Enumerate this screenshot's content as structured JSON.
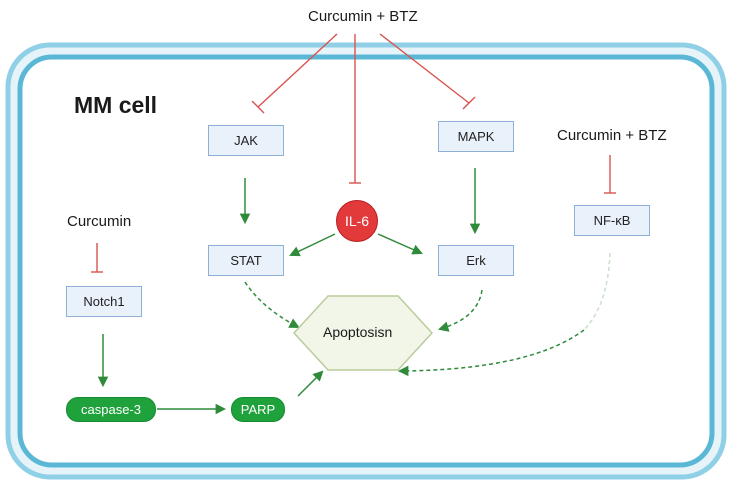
{
  "diagram": {
    "cell_label": "MM cell",
    "treatments": {
      "top": "Curcumin + BTZ",
      "right": "Curcumin + BTZ",
      "left": "Curcumin"
    },
    "nodes": {
      "jak": "JAK",
      "mapk": "MAPK",
      "il6": "IL-6",
      "stat": "STAT",
      "erk": "Erk",
      "nfkb": "NF-κB",
      "notch1": "Notch1",
      "apoptosis": "Apoptosisn",
      "caspase3": "caspase-3",
      "parp": "PARP"
    },
    "colors": {
      "membrane_outer": "#8fd0e6",
      "membrane_inner": "#5bb7d6",
      "inhibition": "#d9534f",
      "activation": "#2f8a3a",
      "node_fill": "#e9f1fb",
      "node_border": "#8fb0d6",
      "il6_fill": "#e23a3b",
      "green_pill": "#1fa23c",
      "apoptosis_fill": "#f1f6e8"
    }
  }
}
